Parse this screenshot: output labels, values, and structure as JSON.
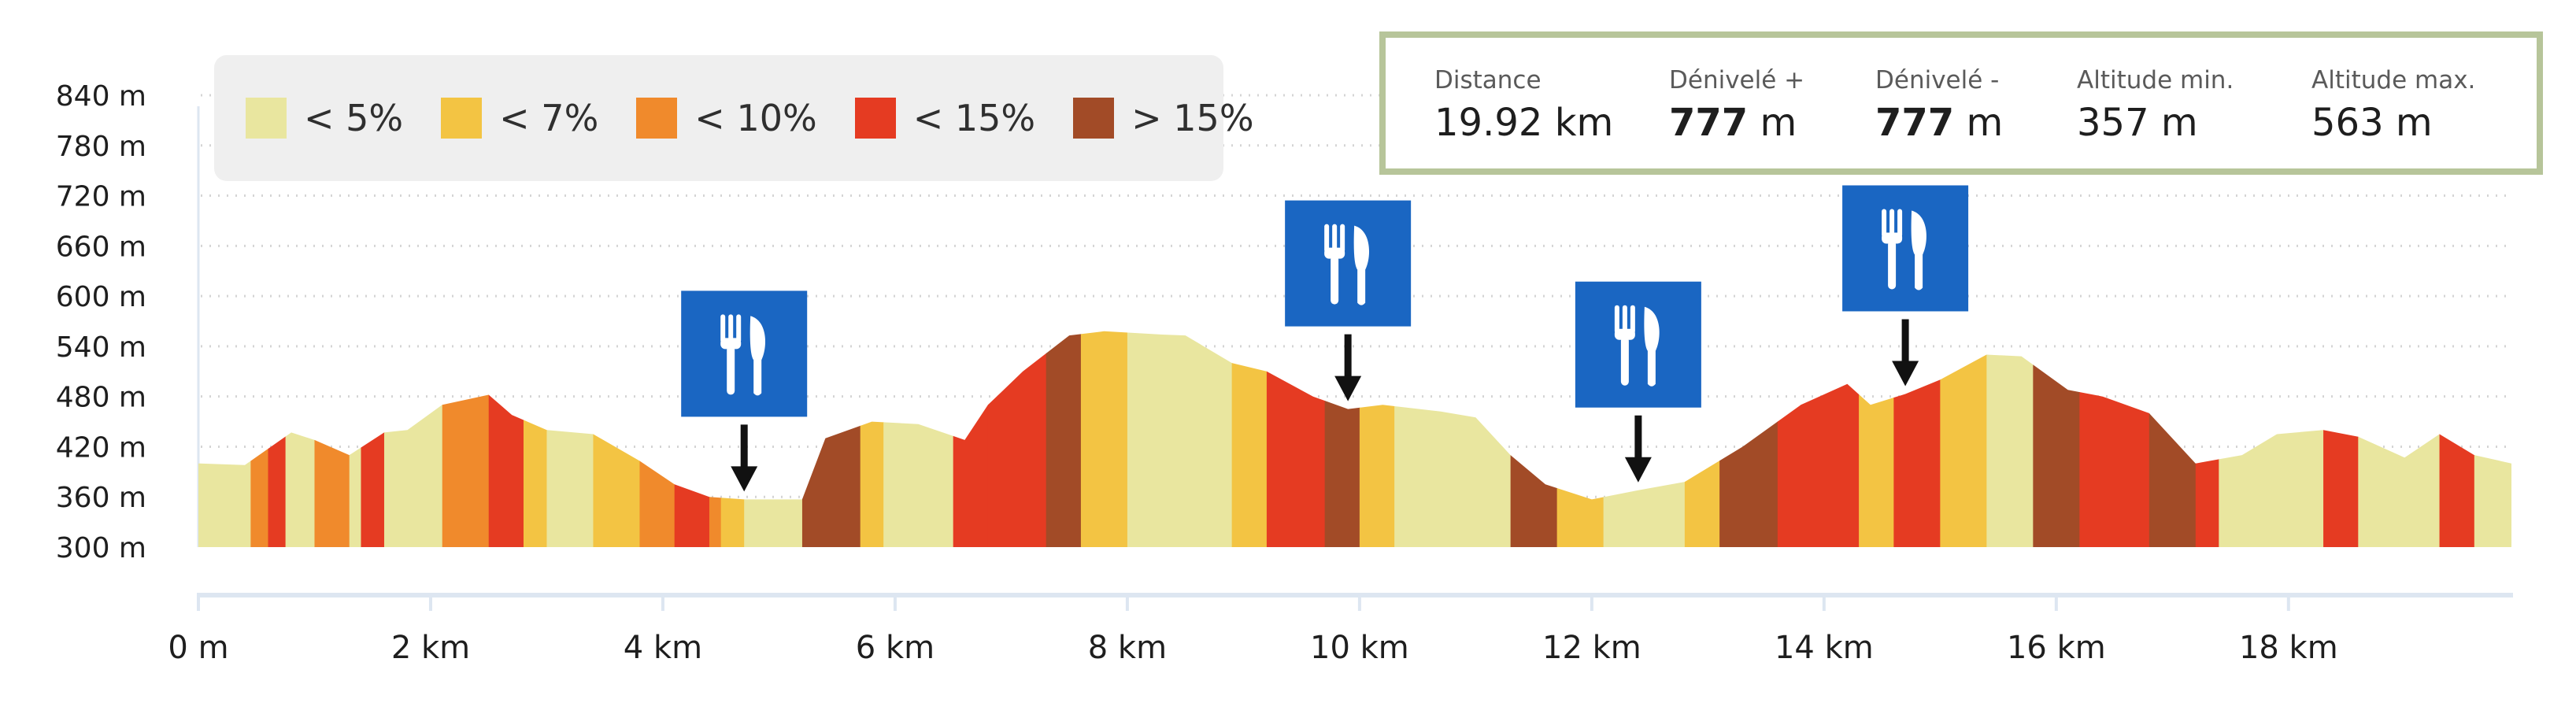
{
  "legend": [
    {
      "label": "< 5%",
      "color": "#e9e69f"
    },
    {
      "label": "< 7%",
      "color": "#f3c443"
    },
    {
      "label": "< 10%",
      "color": "#f08a2c"
    },
    {
      "label": "< 15%",
      "color": "#e53b22"
    },
    {
      "label": "> 15%",
      "color": "#a24b27"
    }
  ],
  "stats": {
    "distance": {
      "label": "Distance",
      "value": "19.92",
      "unit": "km"
    },
    "gain": {
      "label": "Dénivelé +",
      "value": "777",
      "unit": "m"
    },
    "loss": {
      "label": "Dénivelé -",
      "value": "777",
      "unit": "m"
    },
    "alt_min": {
      "label": "Altitude min.",
      "value": "357",
      "unit": "m"
    },
    "alt_max": {
      "label": "Altitude max.",
      "value": "563",
      "unit": "m"
    }
  },
  "chart_data": {
    "type": "area",
    "title": "",
    "xlabel": "",
    "ylabel": "",
    "xlim": [
      0,
      19.92
    ],
    "ylim": [
      300,
      840
    ],
    "yticks": [
      300,
      360,
      420,
      480,
      540,
      600,
      660,
      720,
      780,
      840
    ],
    "ytick_labels": [
      "300 m",
      "360 m",
      "420 m",
      "480 m",
      "540 m",
      "600 m",
      "660 m",
      "720 m",
      "780 m",
      "840 m"
    ],
    "xticks": [
      0,
      2,
      4,
      6,
      8,
      10,
      12,
      14,
      16,
      18
    ],
    "xtick_labels": [
      "0 m",
      "2 km",
      "4 km",
      "6 km",
      "8 km",
      "10 km",
      "12 km",
      "14 km",
      "16 km",
      "18 km"
    ],
    "grid": "horizontal dotted",
    "legend_placement": "top-left",
    "series": [
      {
        "x": [
          0,
          0.4,
          0.8,
          1.0,
          1.3,
          1.6,
          1.8,
          2.1,
          2.5,
          2.7,
          3.0,
          3.4,
          3.8,
          4.1,
          4.4,
          4.7,
          5.2,
          5.4,
          5.8,
          6.2,
          6.6,
          6.8,
          7.1,
          7.5,
          7.8,
          8.3,
          8.5,
          8.9,
          9.2,
          9.6,
          9.9,
          10.2,
          10.7,
          11.0,
          11.3,
          11.6,
          12.0,
          12.4,
          12.8,
          13.3,
          13.8,
          14.2,
          14.4,
          14.7,
          15.0,
          15.4,
          15.7,
          16.1,
          16.4,
          16.8,
          17.2,
          17.6,
          17.9,
          18.3,
          18.6,
          19.0,
          19.3,
          19.6,
          19.92
        ],
        "y": [
          400,
          398,
          437,
          428,
          410,
          437,
          440,
          470,
          482,
          458,
          440,
          435,
          403,
          375,
          360,
          357,
          357,
          430,
          450,
          447,
          428,
          470,
          510,
          553,
          558,
          554,
          553,
          520,
          510,
          480,
          465,
          470,
          462,
          455,
          410,
          375,
          357,
          368,
          378,
          420,
          470,
          495,
          470,
          483,
          500,
          530,
          528,
          488,
          480,
          460,
          400,
          410,
          435,
          440,
          432,
          407,
          435,
          410,
          400
        ]
      }
    ],
    "grade_segments": [
      {
        "from": 0.0,
        "to": 0.45,
        "grade": "< 5%"
      },
      {
        "from": 0.45,
        "to": 0.6,
        "grade": "< 10%"
      },
      {
        "from": 0.6,
        "to": 0.75,
        "grade": "< 15%"
      },
      {
        "from": 0.75,
        "to": 1.0,
        "grade": "< 5%"
      },
      {
        "from": 1.0,
        "to": 1.3,
        "grade": "< 10%"
      },
      {
        "from": 1.3,
        "to": 1.4,
        "grade": "< 5%"
      },
      {
        "from": 1.4,
        "to": 1.6,
        "grade": "< 15%"
      },
      {
        "from": 1.6,
        "to": 2.1,
        "grade": "< 5%"
      },
      {
        "from": 2.1,
        "to": 2.5,
        "grade": "< 10%"
      },
      {
        "from": 2.5,
        "to": 2.8,
        "grade": "< 15%"
      },
      {
        "from": 2.8,
        "to": 3.0,
        "grade": "< 7%"
      },
      {
        "from": 3.0,
        "to": 3.4,
        "grade": "< 5%"
      },
      {
        "from": 3.4,
        "to": 3.8,
        "grade": "< 7%"
      },
      {
        "from": 3.8,
        "to": 4.1,
        "grade": "< 10%"
      },
      {
        "from": 4.1,
        "to": 4.4,
        "grade": "< 15%"
      },
      {
        "from": 4.4,
        "to": 4.5,
        "grade": "< 10%"
      },
      {
        "from": 4.5,
        "to": 4.7,
        "grade": "< 7%"
      },
      {
        "from": 4.7,
        "to": 5.2,
        "grade": "< 5%"
      },
      {
        "from": 5.2,
        "to": 5.7,
        "grade": "> 15%"
      },
      {
        "from": 5.7,
        "to": 5.9,
        "grade": "< 7%"
      },
      {
        "from": 5.9,
        "to": 6.5,
        "grade": "< 5%"
      },
      {
        "from": 6.5,
        "to": 6.8,
        "grade": "< 15%"
      },
      {
        "from": 6.8,
        "to": 7.3,
        "grade": "< 15%"
      },
      {
        "from": 7.3,
        "to": 7.6,
        "grade": "> 15%"
      },
      {
        "from": 7.6,
        "to": 8.0,
        "grade": "< 7%"
      },
      {
        "from": 8.0,
        "to": 8.9,
        "grade": "< 5%"
      },
      {
        "from": 8.9,
        "to": 9.2,
        "grade": "< 7%"
      },
      {
        "from": 9.2,
        "to": 9.7,
        "grade": "< 15%"
      },
      {
        "from": 9.7,
        "to": 10.0,
        "grade": "> 15%"
      },
      {
        "from": 10.0,
        "to": 10.3,
        "grade": "< 7%"
      },
      {
        "from": 10.3,
        "to": 11.3,
        "grade": "< 5%"
      },
      {
        "from": 11.3,
        "to": 11.7,
        "grade": "> 15%"
      },
      {
        "from": 11.7,
        "to": 12.1,
        "grade": "< 7%"
      },
      {
        "from": 12.1,
        "to": 12.8,
        "grade": "< 5%"
      },
      {
        "from": 12.8,
        "to": 13.1,
        "grade": "< 7%"
      },
      {
        "from": 13.1,
        "to": 13.6,
        "grade": "> 15%"
      },
      {
        "from": 13.6,
        "to": 14.3,
        "grade": "< 15%"
      },
      {
        "from": 14.3,
        "to": 14.6,
        "grade": "< 7%"
      },
      {
        "from": 14.6,
        "to": 15.0,
        "grade": "< 15%"
      },
      {
        "from": 15.0,
        "to": 15.4,
        "grade": "< 7%"
      },
      {
        "from": 15.4,
        "to": 15.8,
        "grade": "< 5%"
      },
      {
        "from": 15.8,
        "to": 16.2,
        "grade": "> 15%"
      },
      {
        "from": 16.2,
        "to": 16.8,
        "grade": "< 15%"
      },
      {
        "from": 16.8,
        "to": 17.2,
        "grade": "> 15%"
      },
      {
        "from": 17.2,
        "to": 17.4,
        "grade": "< 15%"
      },
      {
        "from": 17.4,
        "to": 18.3,
        "grade": "< 5%"
      },
      {
        "from": 18.3,
        "to": 18.6,
        "grade": "< 15%"
      },
      {
        "from": 18.6,
        "to": 19.3,
        "grade": "< 5%"
      },
      {
        "from": 19.3,
        "to": 19.6,
        "grade": "< 15%"
      },
      {
        "from": 19.6,
        "to": 19.92,
        "grade": "< 5%"
      }
    ],
    "markers": [
      {
        "name": "restaurant-marker-1",
        "icon": "fork-knife-icon",
        "x": 4.7
      },
      {
        "name": "restaurant-marker-2",
        "icon": "fork-knife-icon",
        "x": 9.9
      },
      {
        "name": "restaurant-marker-3",
        "icon": "fork-knife-icon",
        "x": 12.4
      },
      {
        "name": "restaurant-marker-4",
        "icon": "fork-knife-icon",
        "x": 14.7
      }
    ],
    "marker_color": "#1a66c2"
  }
}
